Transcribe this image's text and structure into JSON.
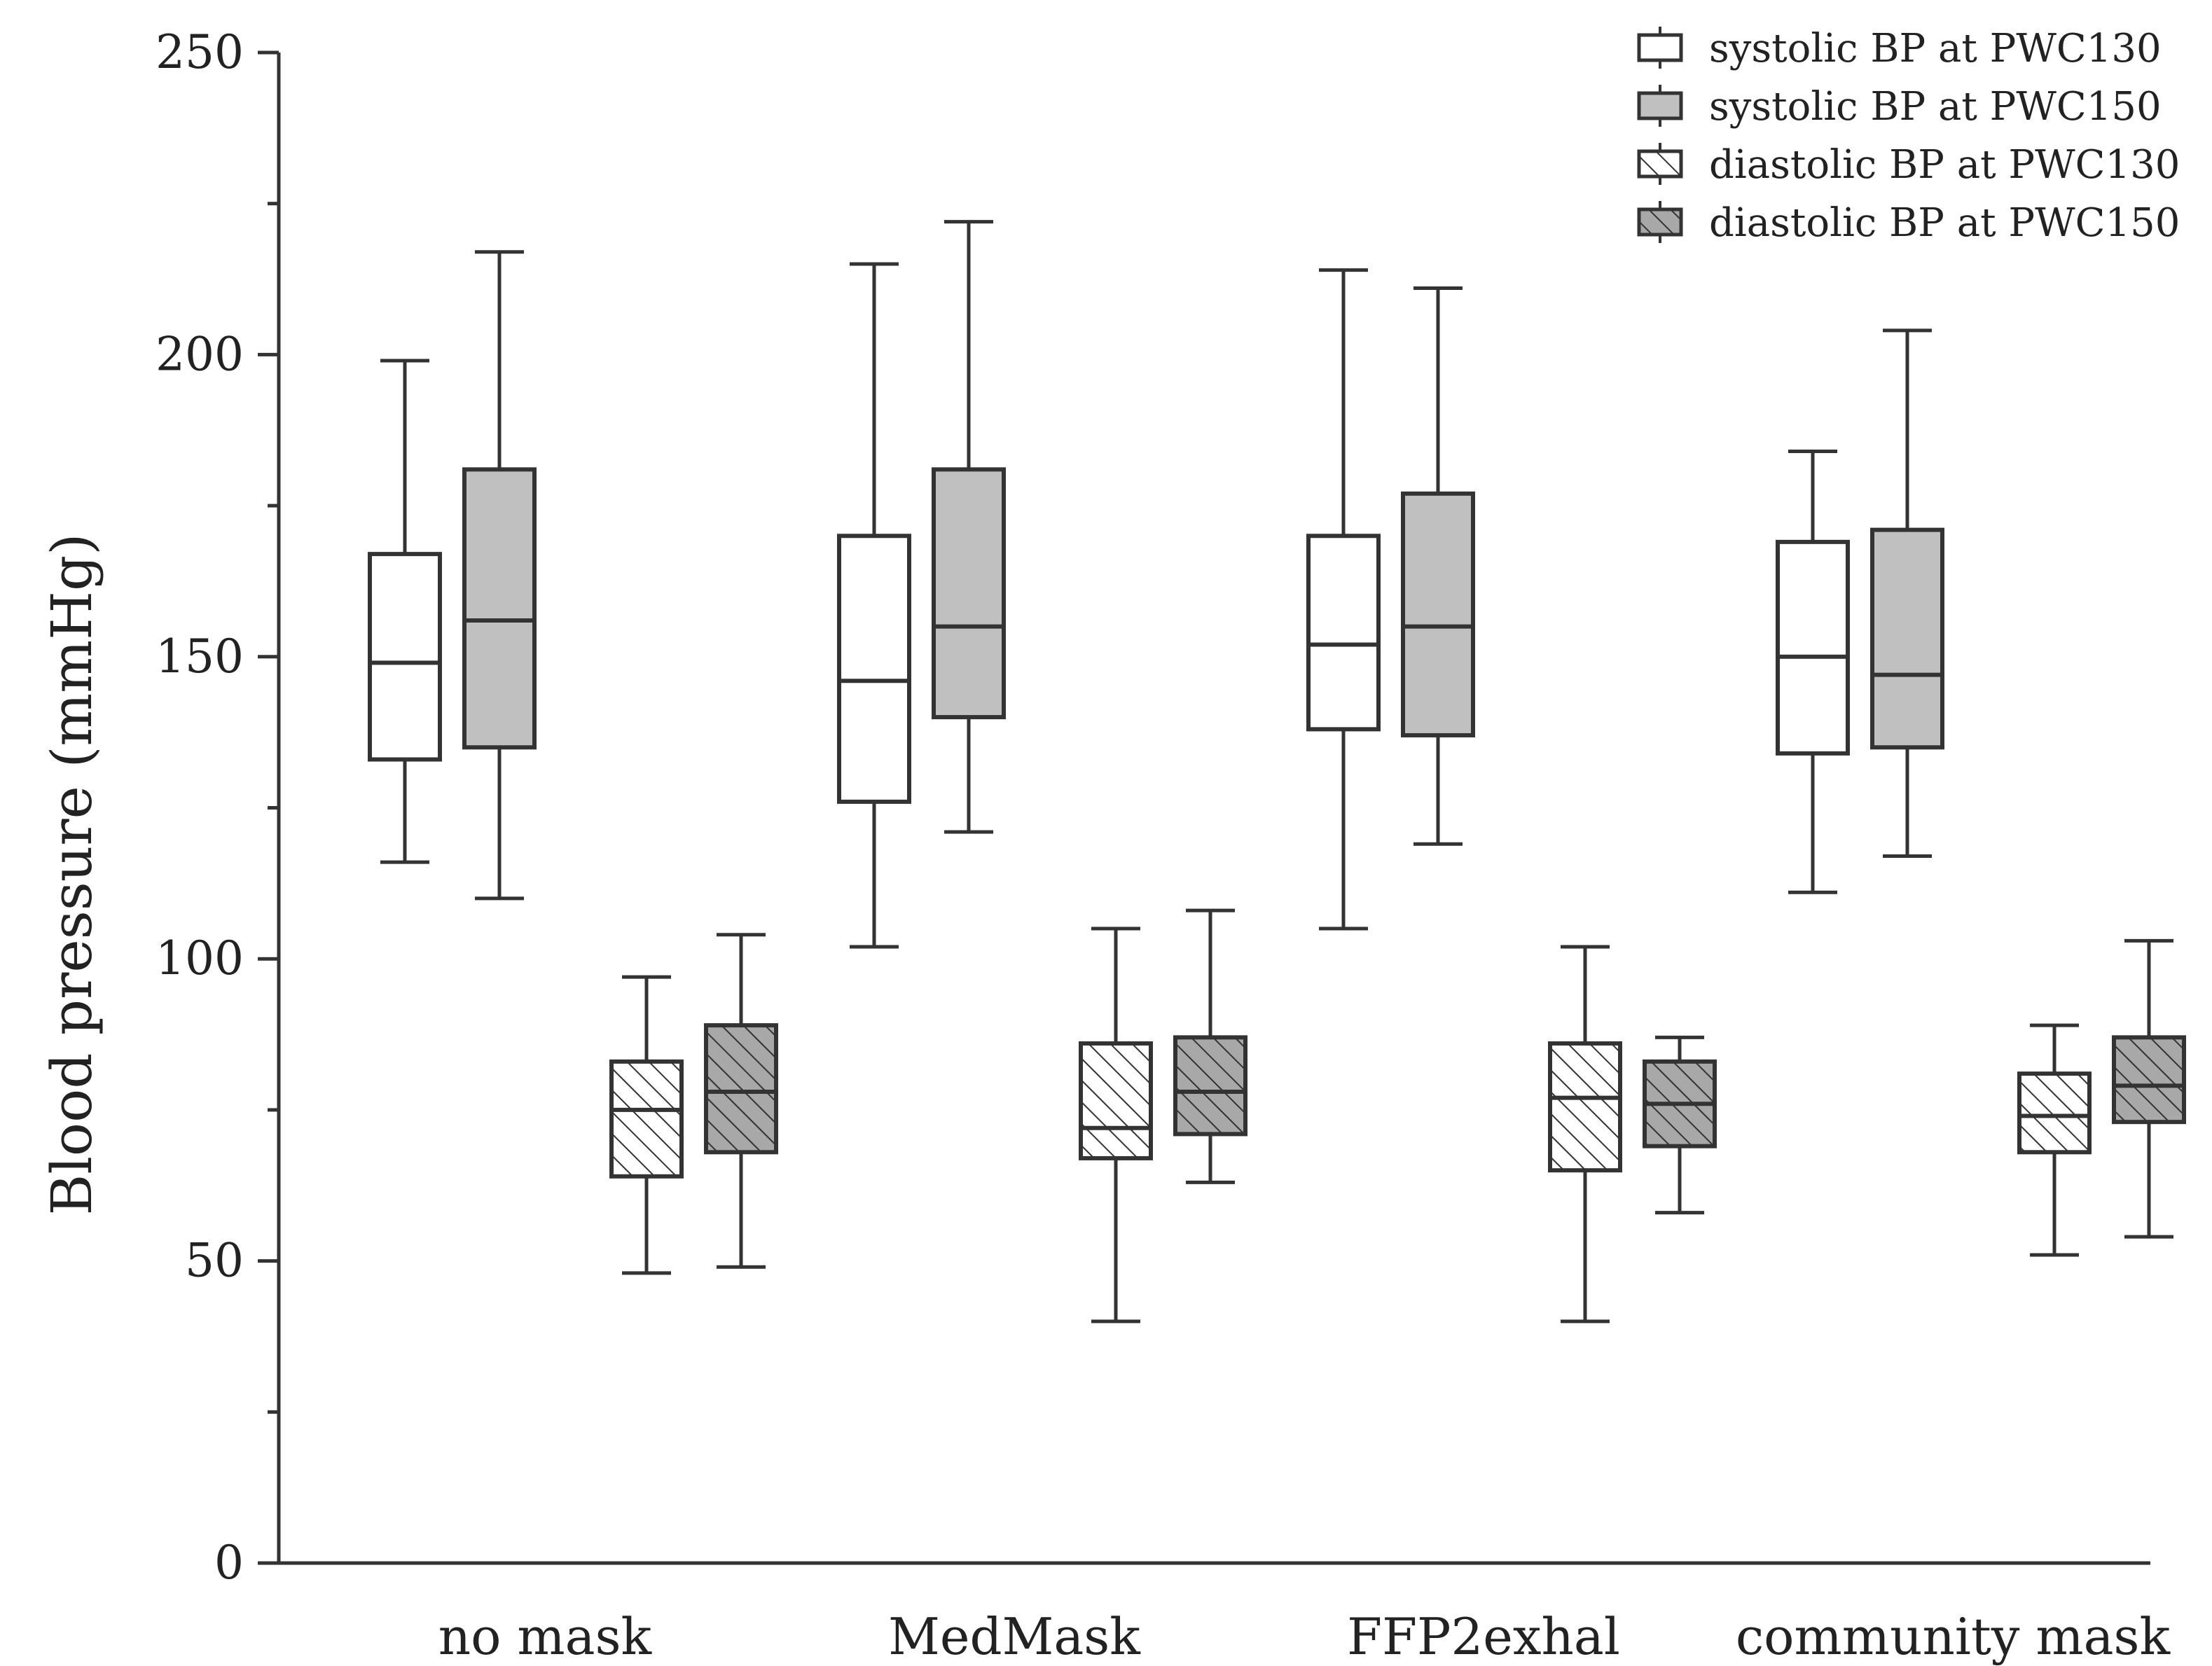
{
  "chart_data": {
    "type": "box",
    "ylabel": "Blood pressure (mmHg)",
    "xlabel": "",
    "ylim": [
      0,
      250
    ],
    "yticks": [
      0,
      50,
      100,
      150,
      200,
      250
    ],
    "categories": [
      "no mask",
      "MedMask",
      "FFP2exhal",
      "community mask"
    ],
    "legend_position": "top-right",
    "series": [
      {
        "name": "systolic BP at PWC130",
        "fill": "#ffffff",
        "hatch": false,
        "boxes": [
          {
            "min": 116,
            "q1": 133,
            "median": 149,
            "q3": 167,
            "max": 199
          },
          {
            "min": 102,
            "q1": 126,
            "median": 146,
            "q3": 170,
            "max": 215
          },
          {
            "min": 105,
            "q1": 138,
            "median": 152,
            "q3": 170,
            "max": 214
          },
          {
            "min": 111,
            "q1": 134,
            "median": 150,
            "q3": 169,
            "max": 184
          }
        ]
      },
      {
        "name": "systolic BP at PWC150",
        "fill": "#c0c0c0",
        "hatch": false,
        "boxes": [
          {
            "min": 110,
            "q1": 135,
            "median": 156,
            "q3": 181,
            "max": 217
          },
          {
            "min": 121,
            "q1": 140,
            "median": 155,
            "q3": 181,
            "max": 222
          },
          {
            "min": 119,
            "q1": 137,
            "median": 155,
            "q3": 177,
            "max": 211
          },
          {
            "min": 117,
            "q1": 135,
            "median": 147,
            "q3": 171,
            "max": 204
          }
        ]
      },
      {
        "name": "diastolic BP at PWC130",
        "fill": "#ffffff",
        "hatch": true,
        "boxes": [
          {
            "min": 48,
            "q1": 64,
            "median": 75,
            "q3": 83,
            "max": 97
          },
          {
            "min": 40,
            "q1": 67,
            "median": 72,
            "q3": 86,
            "max": 105
          },
          {
            "min": 40,
            "q1": 65,
            "median": 77,
            "q3": 86,
            "max": 102
          },
          {
            "min": 51,
            "q1": 68,
            "median": 74,
            "q3": 81,
            "max": 89
          }
        ]
      },
      {
        "name": "diastolic BP at PWC150",
        "fill": "#a8a8a8",
        "hatch": true,
        "boxes": [
          {
            "min": 49,
            "q1": 68,
            "median": 78,
            "q3": 89,
            "max": 104
          },
          {
            "min": 63,
            "q1": 71,
            "median": 78,
            "q3": 87,
            "max": 108
          },
          {
            "min": 58,
            "q1": 69,
            "median": 76,
            "q3": 83,
            "max": 87
          },
          {
            "min": 54,
            "q1": 73,
            "median": 79,
            "q3": 87,
            "max": 103
          }
        ]
      }
    ]
  }
}
